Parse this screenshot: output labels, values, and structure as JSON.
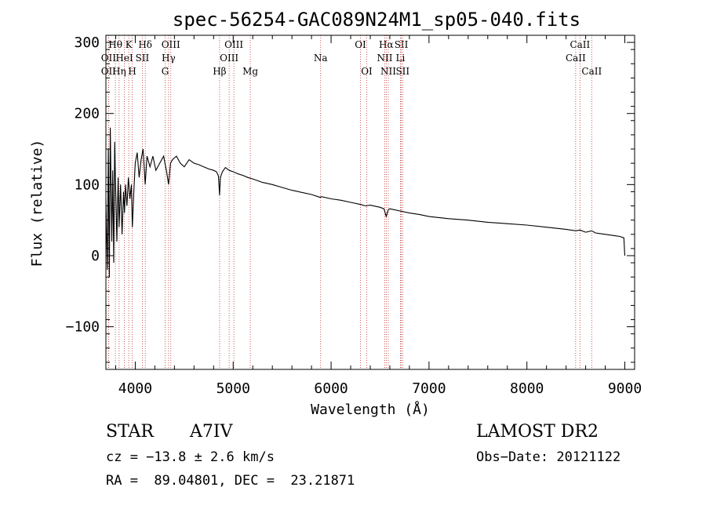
{
  "chart_data": {
    "type": "line",
    "title": "spec-56254-GAC089N24M1_sp05-040.fits",
    "xlabel": "Wavelength (Å)",
    "ylabel": "Flux (relative)",
    "xlim": [
      3700,
      9100
    ],
    "ylim": [
      -160,
      310
    ],
    "x_ticks": [
      4000,
      5000,
      6000,
      7000,
      8000,
      9000
    ],
    "y_ticks": [
      -100,
      0,
      100,
      200,
      300
    ],
    "grid": false,
    "series": [
      {
        "x": [
          3700,
          3715,
          3725,
          3735,
          3745,
          3760,
          3770,
          3780,
          3790,
          3800,
          3812,
          3825,
          3835,
          3850,
          3865,
          3880,
          3890,
          3900,
          3915,
          3930,
          3945,
          3960,
          3970,
          3985,
          4000,
          4020,
          4040,
          4060,
          4080,
          4101,
          4120,
          4150,
          4180,
          4210,
          4250,
          4290,
          4320,
          4340,
          4360,
          4380,
          4420,
          4460,
          4500,
          4550,
          4600,
          4650,
          4700,
          4750,
          4800,
          4830,
          4850,
          4861,
          4870,
          4890,
          4920,
          4960,
          5000,
          5050,
          5100,
          5150,
          5200,
          5300,
          5400,
          5500,
          5600,
          5700,
          5800,
          5890,
          5900,
          6000,
          6100,
          6200,
          6300,
          6350,
          6400,
          6500,
          6540,
          6563,
          6585,
          6600,
          6700,
          6800,
          6900,
          7000,
          7200,
          7400,
          7600,
          7800,
          8000,
          8200,
          8400,
          8500,
          8542,
          8600,
          8662,
          8700,
          8800,
          8900,
          8950,
          8990,
          9000
        ],
        "y": [
          80,
          -20,
          150,
          -30,
          180,
          20,
          120,
          -10,
          160,
          90,
          20,
          110,
          40,
          100,
          30,
          90,
          60,
          100,
          70,
          110,
          80,
          100,
          40,
          90,
          130,
          145,
          110,
          135,
          150,
          100,
          140,
          125,
          140,
          120,
          130,
          140,
          118,
          100,
          130,
          135,
          140,
          130,
          125,
          135,
          130,
          128,
          125,
          122,
          120,
          118,
          112,
          85,
          110,
          118,
          124,
          120,
          118,
          115,
          113,
          110,
          108,
          103,
          100,
          96,
          92,
          89,
          86,
          82,
          83,
          80,
          78,
          75,
          72,
          70,
          71,
          68,
          66,
          55,
          65,
          66,
          63,
          60,
          58,
          55,
          52,
          50,
          47,
          45,
          43,
          40,
          37,
          35,
          36,
          33,
          35,
          32,
          30,
          28,
          27,
          25,
          0
        ]
      }
    ],
    "spectral_lines": [
      {
        "label": "OII",
        "wl": 3727,
        "row": 2
      },
      {
        "label": "OII",
        "wl": 3727,
        "row": 3
      },
      {
        "label": "Hθ",
        "wl": 3797,
        "row": 1
      },
      {
        "label": "Hη",
        "wl": 3835,
        "row": 3
      },
      {
        "label": "K",
        "wl": 3934,
        "row": 1
      },
      {
        "label": "HeI",
        "wl": 3889,
        "row": 2
      },
      {
        "label": "H",
        "wl": 3969,
        "row": 3
      },
      {
        "label": "Hδ",
        "wl": 4102,
        "row": 1
      },
      {
        "label": "SII",
        "wl": 4072,
        "row": 2
      },
      {
        "label": "OIII",
        "wl": 4363,
        "row": 1
      },
      {
        "label": "Hγ",
        "wl": 4340,
        "row": 2
      },
      {
        "label": "G",
        "wl": 4305,
        "row": 3
      },
      {
        "label": "Hβ",
        "wl": 4861,
        "row": 3
      },
      {
        "label": "OIII",
        "wl": 5007,
        "row": 1
      },
      {
        "label": "OIII",
        "wl": 4959,
        "row": 2
      },
      {
        "label": "Mg",
        "wl": 5175,
        "row": 3
      },
      {
        "label": "Na",
        "wl": 5893,
        "row": 2
      },
      {
        "label": "OI",
        "wl": 6300,
        "row": 1
      },
      {
        "label": "OI",
        "wl": 6364,
        "row": 3
      },
      {
        "label": "Hα",
        "wl": 6563,
        "row": 1
      },
      {
        "label": "NII",
        "wl": 6548,
        "row": 2
      },
      {
        "label": "NII",
        "wl": 6584,
        "row": 3
      },
      {
        "label": "SII",
        "wl": 6717,
        "row": 1
      },
      {
        "label": "Li",
        "wl": 6708,
        "row": 2
      },
      {
        "label": "SII",
        "wl": 6731,
        "row": 3
      },
      {
        "label": "CaII",
        "wl": 8542,
        "row": 1
      },
      {
        "label": "CaII",
        "wl": 8498,
        "row": 2
      },
      {
        "label": "CaII",
        "wl": 8662,
        "row": 3
      }
    ]
  },
  "info": {
    "class": "STAR",
    "subclass": "A7IV",
    "survey": "LAMOST DR2",
    "cz": "cz = −13.8 ± 2.6 km/s",
    "obsdate": "Obs−Date: 20121122",
    "radec": "RA =  89.04801, DEC =  23.21871"
  }
}
